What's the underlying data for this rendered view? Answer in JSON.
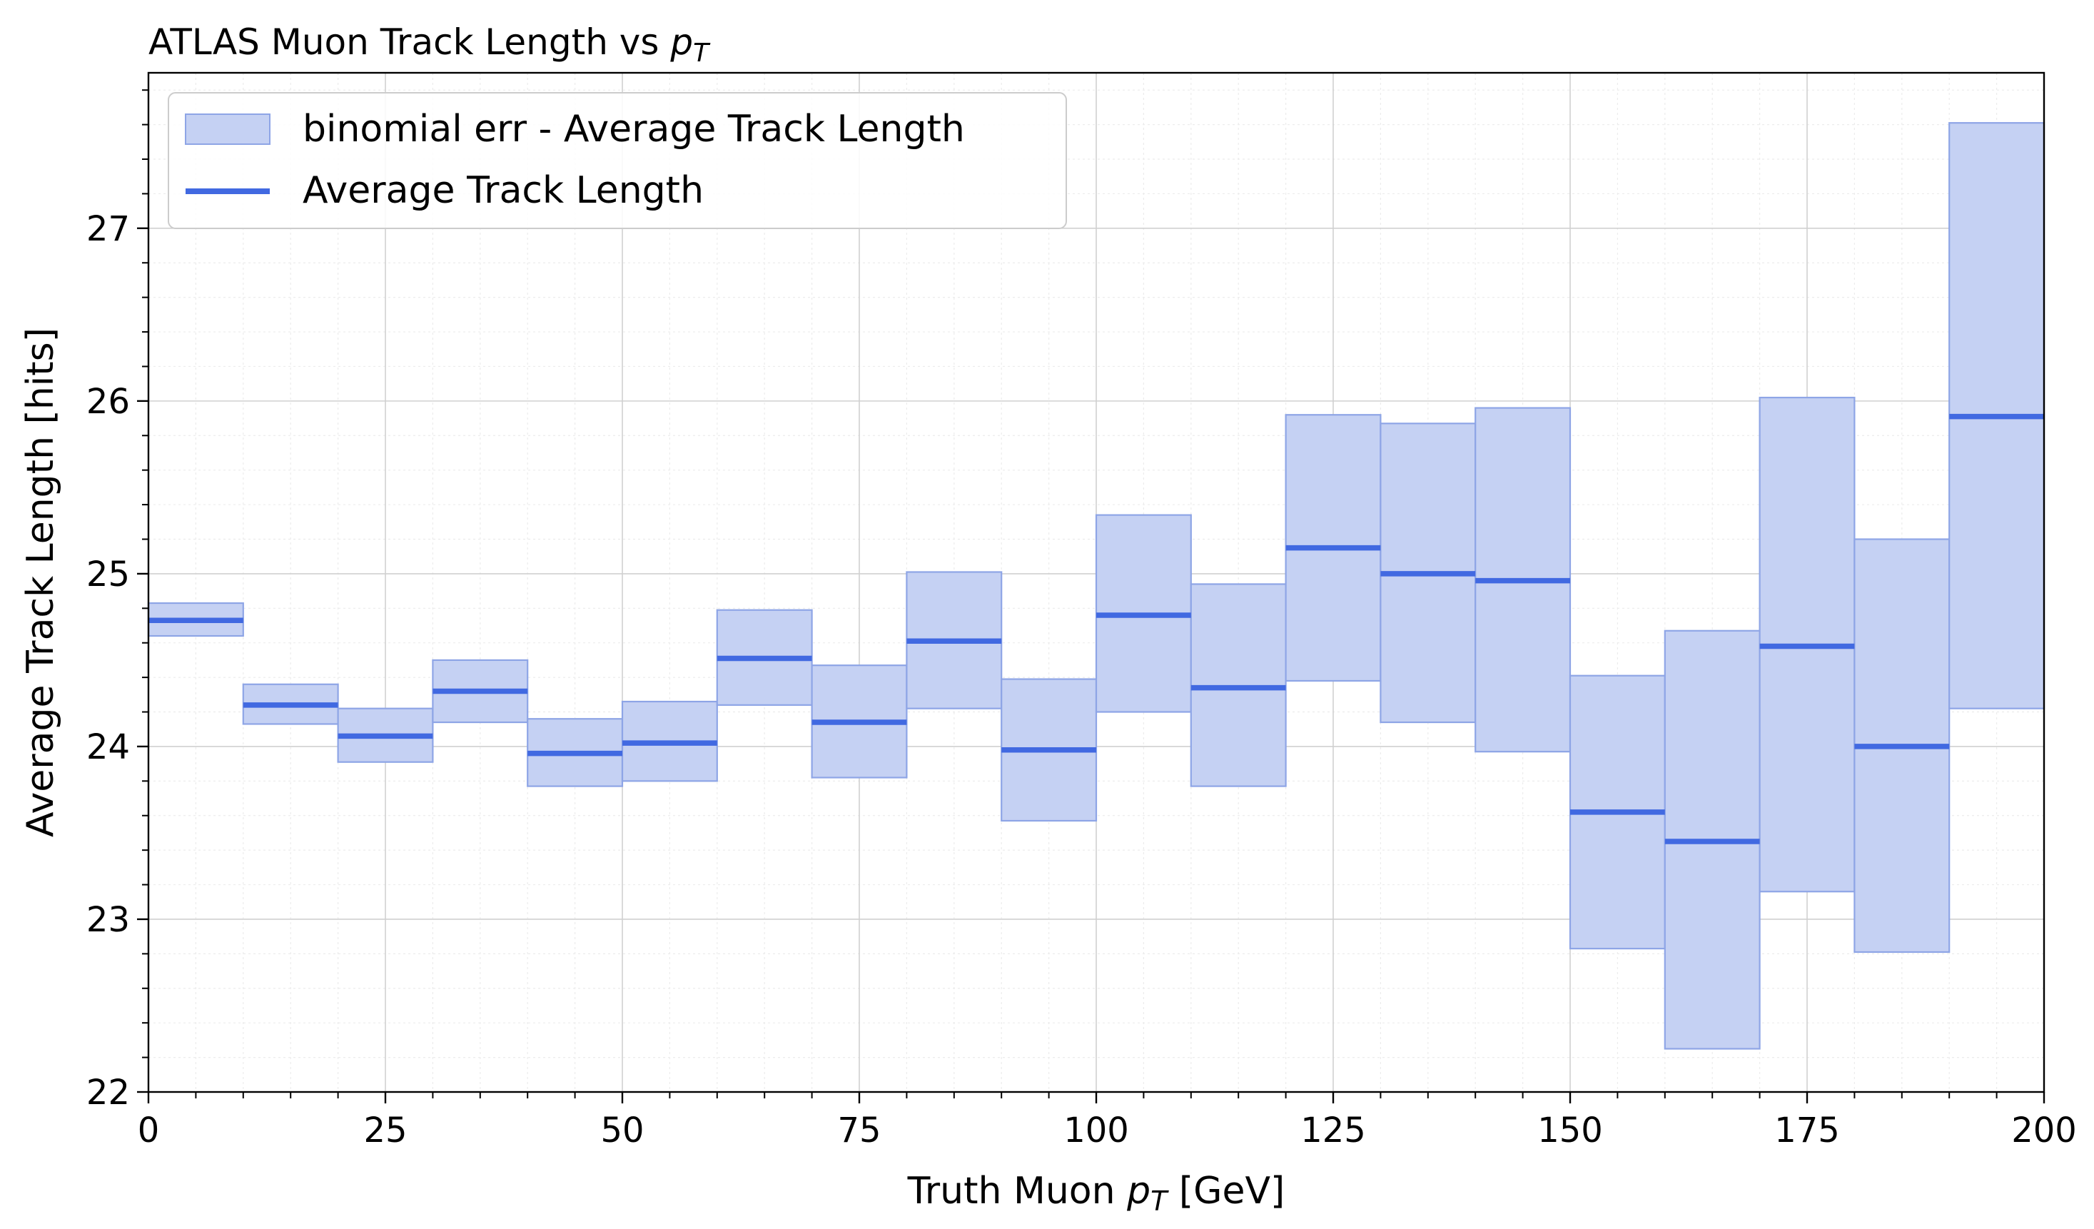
{
  "chart_data": {
    "type": "bar",
    "title_prefix": "ATLAS Muon Track Length vs ",
    "title_var_main": "p",
    "title_var_sub": "T",
    "xlabel_prefix": "Truth Muon ",
    "xlabel_var_main": "p",
    "xlabel_var_sub": "T",
    "xlabel_suffix": " [GeV]",
    "ylabel": "Average Track Length [hits]",
    "xlim": [
      0,
      200
    ],
    "ylim": [
      22,
      27.9
    ],
    "xticks": [
      0,
      25,
      50,
      75,
      100,
      125,
      150,
      175,
      200
    ],
    "yticks": [
      22,
      23,
      24,
      25,
      26,
      27
    ],
    "grid": true,
    "legend_position": "top-left",
    "bin_edges": [
      0,
      10,
      20,
      30,
      40,
      50,
      60,
      70,
      80,
      90,
      100,
      110,
      120,
      130,
      140,
      150,
      160,
      170,
      180,
      190,
      200
    ],
    "series": [
      {
        "name": "binomial err - Average Track Length",
        "kind": "band",
        "color": "#c5d1f3",
        "edge_color": "#8ea5e6",
        "lower": [
          24.64,
          24.13,
          23.91,
          24.14,
          23.77,
          23.8,
          24.24,
          23.82,
          24.22,
          23.57,
          24.2,
          23.77,
          24.38,
          24.14,
          23.97,
          22.83,
          22.25,
          23.16,
          22.81,
          24.22
        ],
        "upper": [
          24.83,
          24.36,
          24.22,
          24.5,
          24.16,
          24.26,
          24.79,
          24.47,
          25.01,
          24.39,
          25.34,
          24.94,
          25.92,
          25.87,
          25.96,
          24.41,
          24.67,
          26.02,
          25.2,
          27.61
        ]
      },
      {
        "name": "Average Track Length",
        "kind": "step",
        "color": "#4169e1",
        "values": [
          24.73,
          24.24,
          24.06,
          24.32,
          23.96,
          24.02,
          24.51,
          24.14,
          24.61,
          23.98,
          24.76,
          24.34,
          25.15,
          25.0,
          24.96,
          23.62,
          23.45,
          24.58,
          24.0,
          25.91
        ]
      }
    ]
  }
}
